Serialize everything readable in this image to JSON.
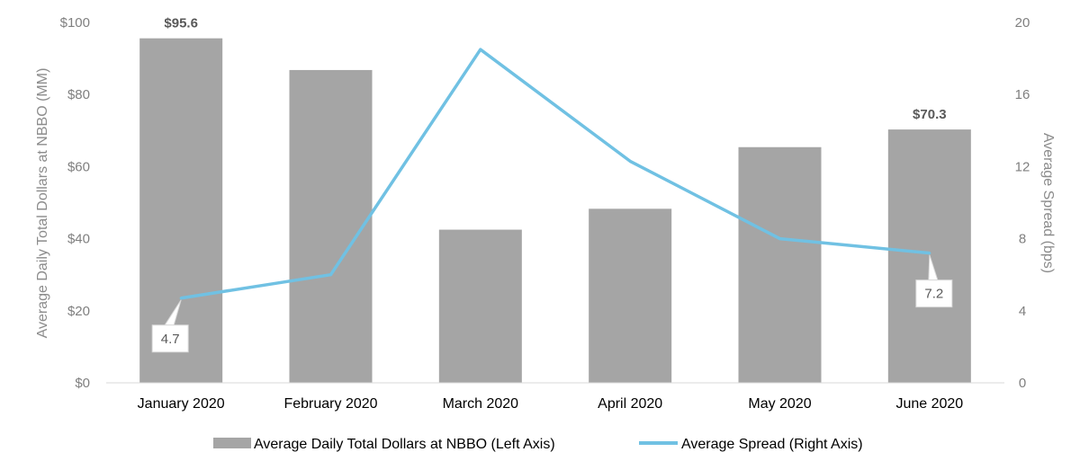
{
  "chart_data": {
    "type": "bar+line",
    "categories": [
      "January 2020",
      "February 2020",
      "March 2020",
      "April 2020",
      "May 2020",
      "June 2020"
    ],
    "series": [
      {
        "name": "Average Daily Total Dollars at NBBO (Left Axis)",
        "type": "bar",
        "axis": "left",
        "color": "#a5a5a5",
        "values": [
          95.6,
          86.8,
          42.5,
          48.3,
          65.4,
          70.3
        ],
        "data_labels": [
          "$95.6",
          "",
          "",
          "",
          "",
          "$70.3"
        ]
      },
      {
        "name": "Average Spread (Right Axis)",
        "type": "line",
        "axis": "right",
        "color": "#70c1e3",
        "values": [
          4.7,
          6.0,
          18.5,
          12.3,
          8.0,
          7.2
        ],
        "data_labels": [
          "4.7",
          "",
          "",
          "",
          "",
          "7.2"
        ]
      }
    ],
    "left_axis": {
      "label": "Average Daily Total Dollars at NBBO (MM)",
      "ylim": [
        0,
        100
      ],
      "ticks": [
        0,
        20,
        40,
        60,
        80,
        100
      ],
      "tick_labels": [
        "$0",
        "$20",
        "$40",
        "$60",
        "$80",
        "$100"
      ]
    },
    "right_axis": {
      "label": "Average Spread (bps)",
      "ylim": [
        0,
        20
      ],
      "ticks": [
        0,
        4,
        8,
        12,
        16,
        20
      ],
      "tick_labels": [
        "0",
        "4",
        "8",
        "12",
        "16",
        "20"
      ]
    },
    "grid": false,
    "legend_position": "bottom"
  }
}
